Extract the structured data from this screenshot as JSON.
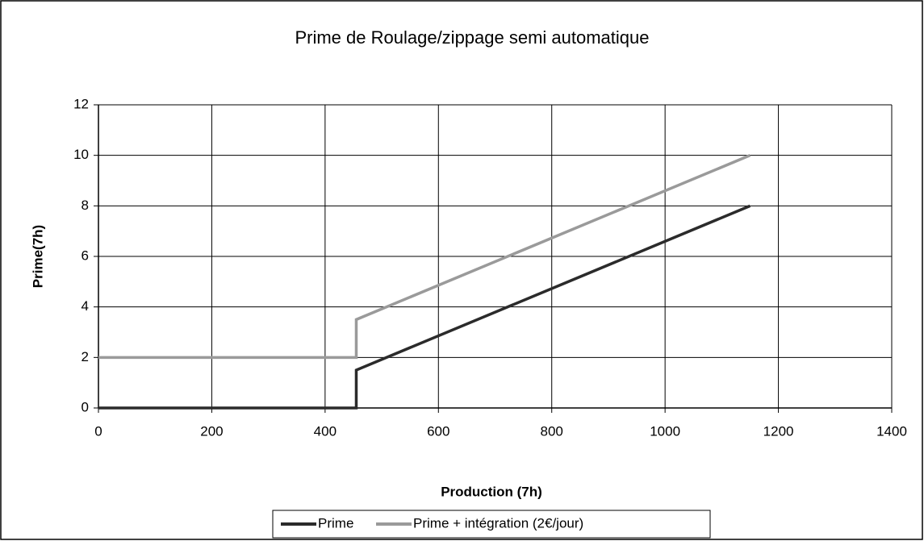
{
  "chart_data": {
    "type": "line",
    "title": "Prime de Roulage/zippage semi automatique",
    "x_label": "Production (7h)",
    "y_label": "Prime(7h)",
    "x": [
      0,
      455,
      455,
      1150
    ],
    "series": [
      {
        "name": "Prime",
        "color": "#2b2b2b",
        "values": [
          0,
          0,
          1.5,
          8
        ]
      },
      {
        "name": "Prime + intégration (2€/jour)",
        "color": "#9a9a9a",
        "values": [
          2,
          2,
          3.5,
          10
        ]
      }
    ],
    "xlim": [
      0,
      1400
    ],
    "xticks": [
      0,
      200,
      400,
      600,
      800,
      1000,
      1200,
      1400
    ],
    "ylim": [
      0,
      12
    ],
    "yticks": [
      0,
      2,
      4,
      6,
      8,
      10,
      12
    ],
    "grid": true,
    "legend": "bottom"
  }
}
